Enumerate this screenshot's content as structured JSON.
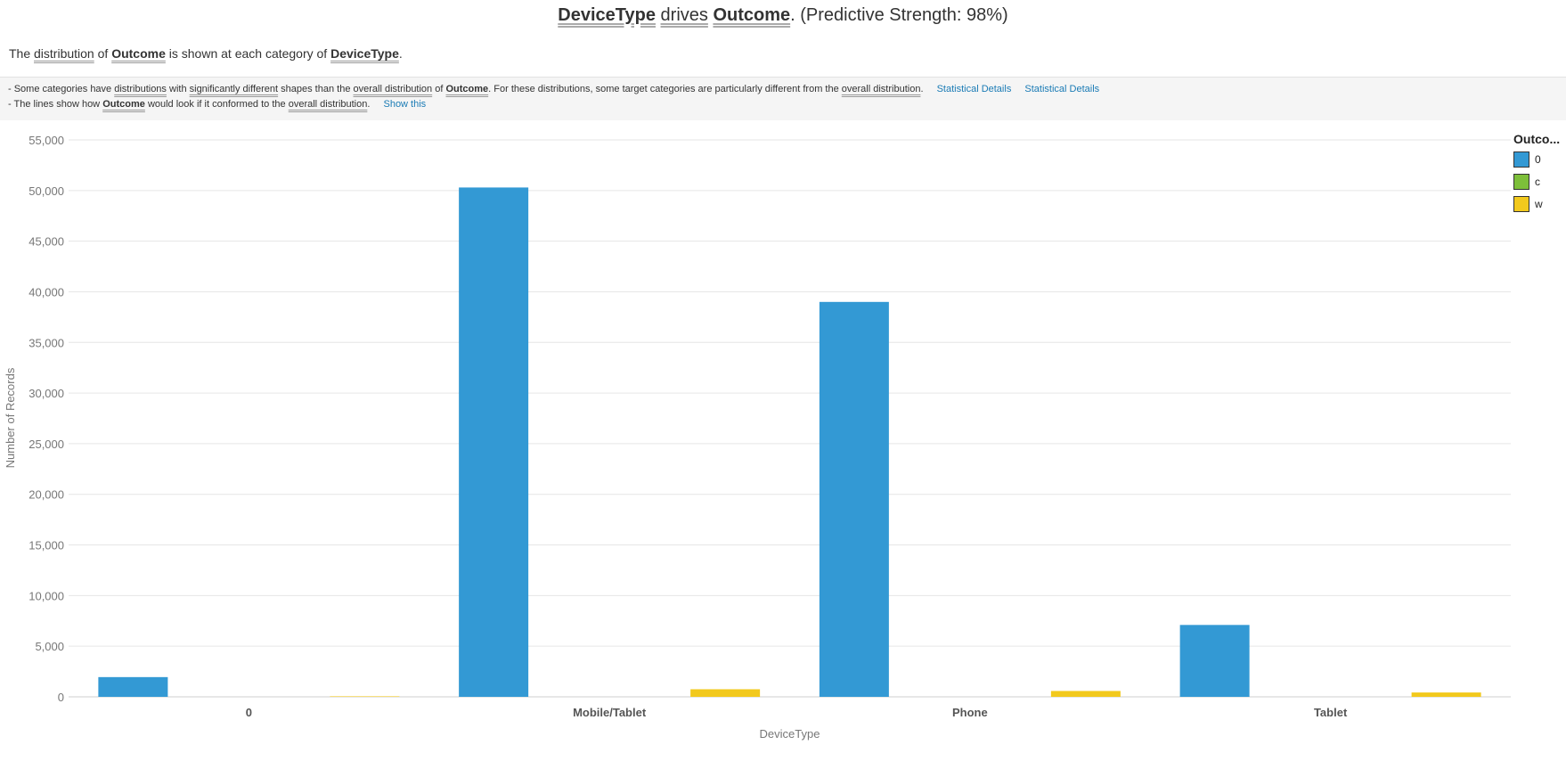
{
  "header": {
    "title_field1": "DeviceType",
    "title_verb": "drives",
    "title_field2": "Outcome",
    "title_suffix": ". (Predictive Strength: 98%)"
  },
  "subtitle": {
    "p1": "The",
    "link_distribution": "distribution",
    "p2": "of",
    "field_outcome": "Outcome",
    "p3": "is shown at each category of",
    "field_device": "DeviceType",
    "p4": "."
  },
  "notes": {
    "line1": {
      "a": "- Some categories have",
      "distributions": "distributions",
      "b": "with",
      "significantly_different": "significantly different",
      "c": "shapes than the",
      "overall_distribution_1": "overall distribution",
      "d": "of",
      "outcome": "Outcome",
      "e": ". For these distributions, some target categories are particularly different from the",
      "overall_distribution_2": "overall distribution",
      "f": ".",
      "link1": "Statistical Details",
      "link2": "Statistical Details"
    },
    "line2": {
      "a": "- The lines show how",
      "outcome": "Outcome",
      "b": "would look if it conformed to the",
      "overall_distribution": "overall distribution",
      "c": ".",
      "link": "Show this"
    }
  },
  "chart_data": {
    "type": "bar",
    "xlabel": "DeviceType",
    "ylabel": "Number of Records",
    "ylim": [
      0,
      55000
    ],
    "yticks": [
      0,
      5000,
      10000,
      15000,
      20000,
      25000,
      30000,
      35000,
      40000,
      45000,
      50000,
      55000
    ],
    "ytick_labels": [
      "0",
      "5,000",
      "10,000",
      "15,000",
      "20,000",
      "25,000",
      "30,000",
      "35,000",
      "40,000",
      "45,000",
      "50,000",
      "55,000"
    ],
    "categories": [
      "0",
      "Mobile/Tablet",
      "Phone",
      "Tablet"
    ],
    "series": [
      {
        "name": "0",
        "color": "#3399d4",
        "values": [
          1950,
          50300,
          39000,
          7100
        ]
      },
      {
        "name": "c",
        "color": "#7dbf3a",
        "values": [
          0,
          0,
          0,
          0
        ]
      },
      {
        "name": "w",
        "color": "#f2c91d",
        "values": [
          50,
          750,
          580,
          430
        ]
      }
    ],
    "grid": true,
    "legend": {
      "title": "Outco...",
      "position": "top-right"
    }
  }
}
